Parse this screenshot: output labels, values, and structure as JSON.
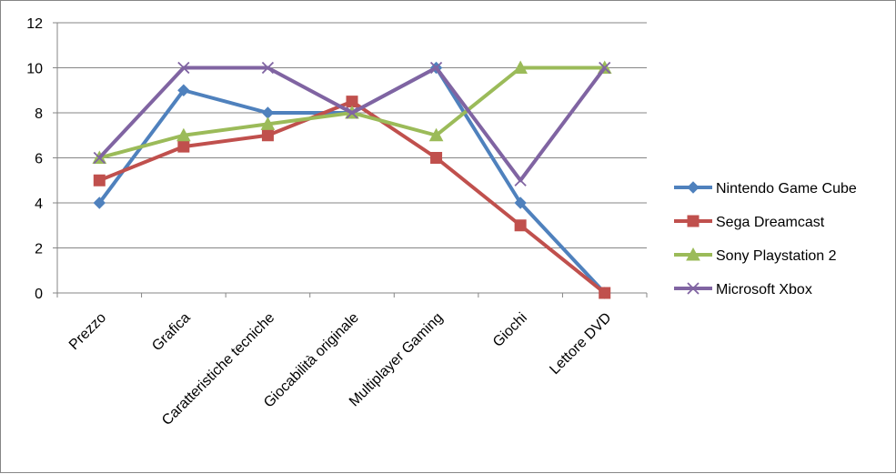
{
  "chart_data": {
    "type": "line",
    "title": "",
    "xlabel": "",
    "ylabel": "",
    "categories": [
      "Prezzo",
      "Grafica",
      "Caratteristiche tecniche",
      "Giocabilità originale",
      "Multiplayer Gaming",
      "Giochi",
      "Lettore DVD"
    ],
    "ylim": [
      0,
      12
    ],
    "yticks": [
      0,
      2,
      4,
      6,
      8,
      10,
      12
    ],
    "grid": "horizontal",
    "legend_position": "right",
    "series": [
      {
        "name": "Nintendo Game Cube",
        "color": "#4F81BD",
        "marker": "diamond",
        "values": [
          4,
          9,
          8,
          8,
          10,
          4,
          0
        ]
      },
      {
        "name": "Sega Dreamcast",
        "color": "#C0504D",
        "marker": "square",
        "values": [
          5,
          6.5,
          7,
          8.5,
          6,
          3,
          0
        ]
      },
      {
        "name": "Sony Playstation 2",
        "color": "#9BBB59",
        "marker": "triangle",
        "values": [
          6,
          7,
          7.5,
          8,
          7,
          10,
          10
        ]
      },
      {
        "name": "Microsoft Xbox",
        "color": "#8064A2",
        "marker": "x",
        "values": [
          6,
          10,
          10,
          8,
          10,
          5,
          10
        ]
      }
    ]
  }
}
